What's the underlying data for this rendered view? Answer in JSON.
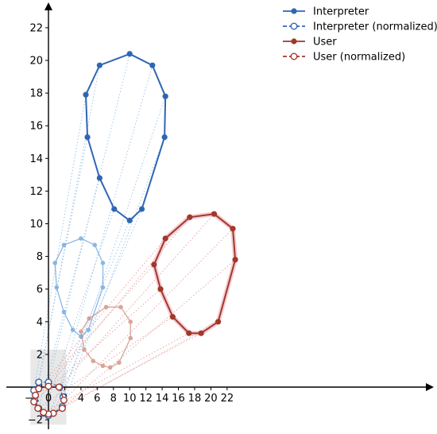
{
  "chart_data": {
    "type": "line",
    "title": "",
    "xlabel": "",
    "ylabel": "",
    "xlim": [
      -2.2,
      23.2
    ],
    "ylim": [
      -2.3,
      23.2
    ],
    "xticks": [
      -2,
      0,
      2,
      4,
      6,
      8,
      10,
      12,
      14,
      16,
      18,
      20,
      22
    ],
    "yticks": [
      -2,
      0,
      2,
      4,
      6,
      8,
      10,
      12,
      14,
      16,
      18,
      20,
      22
    ],
    "grid": false,
    "legend_position": "top-right",
    "highlight_box": {
      "x": [
        -2.2,
        2.2
      ],
      "y": [
        -2.3,
        2.3
      ],
      "color": "#e8e8e8"
    },
    "series": [
      {
        "name": "Interpreter",
        "color": "#2f66b3",
        "style": "solid",
        "marker": "filled",
        "points": [
          [
            10.0,
            20.4
          ],
          [
            12.8,
            19.7
          ],
          [
            14.4,
            17.8
          ],
          [
            14.3,
            15.3
          ],
          [
            11.5,
            10.9
          ],
          [
            10.0,
            10.2
          ],
          [
            8.1,
            10.9
          ],
          [
            6.3,
            12.8
          ],
          [
            4.8,
            15.3
          ],
          [
            4.6,
            17.9
          ],
          [
            6.3,
            19.7
          ]
        ]
      },
      {
        "name": "Interpreter (normalized)",
        "color": "#2f66b3",
        "style": "dashed",
        "marker": "hollow",
        "points": [
          [
            0.0,
            0.3
          ],
          [
            1.4,
            0.0
          ],
          [
            1.8,
            -0.6
          ],
          [
            1.7,
            -1.2
          ],
          [
            0.6,
            -1.6
          ],
          [
            0.0,
            -1.75
          ],
          [
            -0.6,
            -1.6
          ],
          [
            -1.2,
            -1.3
          ],
          [
            -1.7,
            -0.8
          ],
          [
            -1.8,
            -0.2
          ],
          [
            -1.2,
            0.3
          ]
        ]
      },
      {
        "name": "User",
        "color": "#a0392a",
        "style": "solid",
        "marker": "filled",
        "points": [
          [
            20.4,
            10.6
          ],
          [
            22.7,
            9.7
          ],
          [
            23.0,
            7.8
          ],
          [
            20.9,
            4.0
          ],
          [
            18.8,
            3.3
          ],
          [
            17.3,
            3.3
          ],
          [
            15.3,
            4.3
          ],
          [
            13.8,
            6.0
          ],
          [
            13.0,
            7.5
          ],
          [
            14.4,
            9.1
          ],
          [
            17.4,
            10.4
          ]
        ]
      },
      {
        "name": "User (normalized)",
        "color": "#a0392a",
        "style": "dashed",
        "marker": "hollow",
        "points": [
          [
            1.3,
            0.0
          ],
          [
            1.9,
            -0.8
          ],
          [
            1.7,
            -1.3
          ],
          [
            0.6,
            -1.6
          ],
          [
            0.0,
            -1.65
          ],
          [
            -0.6,
            -1.55
          ],
          [
            -1.3,
            -1.3
          ],
          [
            -1.8,
            -0.9
          ],
          [
            -1.6,
            -0.5
          ],
          [
            -1.2,
            -0.1
          ],
          [
            0.0,
            0.05
          ]
        ]
      }
    ],
    "intermediate": [
      {
        "color": "#5b9bd5",
        "points": [
          [
            4.0,
            9.1
          ],
          [
            5.7,
            8.7
          ],
          [
            6.7,
            7.6
          ],
          [
            6.7,
            6.1
          ],
          [
            4.9,
            3.5
          ],
          [
            4.0,
            3.1
          ],
          [
            3.0,
            3.5
          ],
          [
            1.9,
            4.6
          ],
          [
            1.0,
            6.1
          ],
          [
            0.8,
            7.6
          ],
          [
            1.9,
            8.7
          ]
        ]
      },
      {
        "color": "#c97f6c",
        "points": [
          [
            7.1,
            4.9
          ],
          [
            8.9,
            4.9
          ],
          [
            10.1,
            4.0
          ],
          [
            10.1,
            3.0
          ],
          [
            8.7,
            1.5
          ],
          [
            7.6,
            1.2
          ],
          [
            6.7,
            1.3
          ],
          [
            5.5,
            1.6
          ],
          [
            4.4,
            2.3
          ],
          [
            4.0,
            3.4
          ],
          [
            5.0,
            4.2
          ]
        ]
      }
    ]
  }
}
